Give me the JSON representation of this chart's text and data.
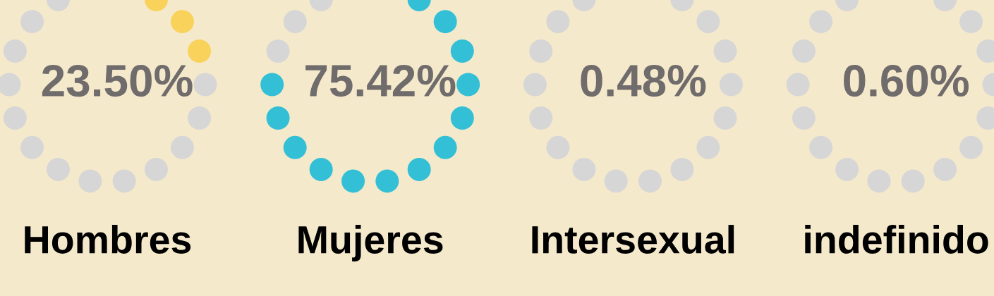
{
  "chart_data": {
    "type": "other",
    "categories": [
      "Hombres",
      "Mujeres",
      "Intersexual",
      "indefinido"
    ],
    "values": [
      23.5,
      75.42,
      0.48,
      0.6
    ],
    "value_labels": [
      "23.50%",
      "75.42%",
      "0.48%",
      "0.60%"
    ],
    "colors": [
      "#f9d25b",
      "#33c0d6",
      "#33c0d6",
      "#33c0d6"
    ]
  }
}
